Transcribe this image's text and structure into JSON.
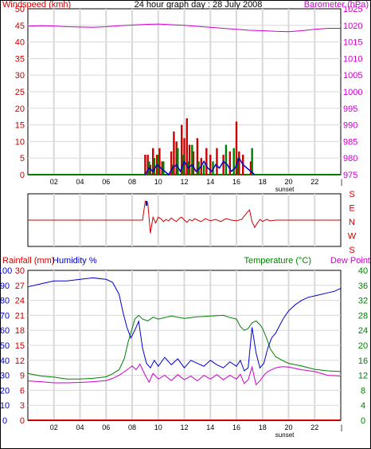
{
  "chart_data": [
    {
      "type": "bar",
      "title": "24 hour graph day : 28 July 2008",
      "left_axis_title": "Windspeed (kmh)",
      "right_axis_title": "Barometer (hPa)",
      "left_axis_ticks": [
        "0",
        "5",
        "10",
        "15",
        "20",
        "25",
        "30",
        "35",
        "40",
        "45",
        "50"
      ],
      "right_axis_ticks": [
        "975",
        "980",
        "985",
        "990",
        "995",
        "1000",
        "1005",
        "1010",
        "1015",
        "1020",
        "1025"
      ],
      "ylim_left": [
        0,
        50
      ],
      "ylim_right": [
        975,
        1025
      ],
      "x_ticks": [
        "02",
        "04",
        "06",
        "08",
        "10",
        "12",
        "14",
        "16",
        "18",
        "20",
        "22"
      ],
      "x_range_hours": [
        0,
        24
      ],
      "sunset_label": "sunset",
      "sunset_hour": 19.7,
      "grid": true,
      "colors": {
        "gust": "#cc0000",
        "avg": "#008000",
        "wind_line": "#0000cc",
        "baseline": "#008000",
        "barometer": "#cc00cc",
        "left_axis": "#cc0000",
        "right_axis": "#cc00cc"
      },
      "barometer": {
        "x": [
          0,
          1,
          2,
          3,
          4,
          5,
          6,
          7,
          8,
          9,
          10,
          11,
          12,
          13,
          14,
          15,
          16,
          17,
          18,
          19,
          20,
          21,
          22,
          23,
          24
        ],
        "y": [
          1019.8,
          1019.9,
          1019.8,
          1019.6,
          1019.5,
          1019.4,
          1019.6,
          1019.9,
          1020.1,
          1020.3,
          1020.4,
          1020.2,
          1020.0,
          1019.7,
          1019.4,
          1019.1,
          1018.8,
          1018.5,
          1018.4,
          1018.2,
          1018.1,
          1018.4,
          1018.8,
          1019.1,
          1019.1
        ]
      },
      "gust": {
        "x": [
          9.0,
          9.2,
          9.4,
          9.6,
          9.9,
          10.1,
          10.3,
          11.0,
          11.2,
          11.4,
          11.8,
          12.0,
          12.2,
          12.4,
          12.7,
          13.0,
          13.3,
          13.7,
          14.0,
          14.5,
          15.0,
          15.5,
          16.0,
          16.2,
          16.5,
          17.1
        ],
        "y": [
          6,
          6,
          3,
          8,
          6,
          8,
          4,
          7,
          13,
          10,
          15,
          11,
          17,
          9,
          7,
          11,
          5,
          8,
          6,
          8,
          6,
          7,
          16,
          7,
          6,
          4
        ]
      },
      "avg": {
        "x": [
          9.3,
          9.7,
          10.0,
          10.4,
          11.1,
          11.5,
          11.9,
          12.3,
          12.6,
          13.1,
          13.5,
          14.2,
          15.2,
          15.8,
          16.1,
          17.2
        ],
        "y": [
          4,
          5,
          6,
          4,
          3,
          8,
          6,
          4,
          9,
          4,
          3,
          4,
          9,
          8,
          5,
          8
        ]
      },
      "wind_line": {
        "x": [
          9.0,
          9.3,
          9.6,
          9.9,
          10.2,
          10.5,
          10.8,
          11.1,
          11.4,
          11.7,
          12.0,
          12.3,
          12.6,
          12.9,
          13.2,
          13.5,
          13.8,
          14.1,
          14.4,
          14.7,
          15.0,
          15.3,
          15.6,
          15.9,
          16.2,
          16.5,
          16.8,
          17.1,
          17.4
        ],
        "y": [
          0,
          2,
          1,
          3,
          2,
          1,
          0,
          2,
          3,
          1,
          4,
          2,
          3,
          1,
          2,
          4,
          2,
          1,
          3,
          2,
          4,
          3,
          1,
          2,
          5,
          3,
          2,
          1,
          0
        ]
      }
    },
    {
      "type": "line",
      "title": "",
      "direction_labels": [
        "S",
        "E",
        "N",
        "W",
        "S"
      ],
      "x_ticks": [],
      "grid": true,
      "colors": {
        "line": "#cc0000",
        "tick": "#0000cc"
      },
      "direction": {
        "x": [
          0,
          8.8,
          9.0,
          9.2,
          9.4,
          9.6,
          9.8,
          10.0,
          10.2,
          10.4,
          10.6,
          10.8,
          11.0,
          11.2,
          11.4,
          11.6,
          11.8,
          12.0,
          12.2,
          12.4,
          12.6,
          12.8,
          13.0,
          13.3,
          13.6,
          14.0,
          14.4,
          14.8,
          15.2,
          15.6,
          16.0,
          16.4,
          16.8,
          17.0,
          17.2,
          17.4,
          17.6,
          17.8,
          18.0,
          18.3,
          18.6,
          19.0,
          24
        ],
        "y": [
          180,
          180,
          310,
          300,
          90,
          200,
          160,
          200,
          190,
          170,
          185,
          175,
          195,
          180,
          170,
          190,
          200,
          180,
          165,
          185,
          175,
          190,
          180,
          170,
          190,
          175,
          185,
          170,
          190,
          180,
          175,
          185,
          230,
          250,
          170,
          130,
          160,
          185,
          170,
          185,
          175,
          180,
          180
        ]
      }
    },
    {
      "type": "line",
      "left_axis_titles": [
        "Rainfall (mm)",
        "Humidity %"
      ],
      "right_axis_titles": [
        "Temperature (°C)",
        "Dew Point"
      ],
      "humidity_ticks": [
        "0",
        "10",
        "20",
        "30",
        "40",
        "50",
        "60",
        "70",
        "80",
        "90",
        "100"
      ],
      "rainfall_ticks": [
        "0",
        "3",
        "6",
        "9",
        "12",
        "15",
        "18",
        "21",
        "24",
        "27",
        "30"
      ],
      "temperature_ticks": [
        "0",
        "4",
        "8",
        "12",
        "16",
        "20",
        "24",
        "28",
        "32",
        "36",
        "40"
      ],
      "x_ticks": [
        "02",
        "04",
        "06",
        "08",
        "10",
        "12",
        "14",
        "16",
        "18",
        "20",
        "22"
      ],
      "x_range_hours": [
        0,
        24
      ],
      "sunset_label": "sunset",
      "sunset_hour": 19.7,
      "grid": true,
      "colors": {
        "humidity": "#0000cc",
        "temperature": "#008000",
        "dew_point": "#cc00cc",
        "rainfall": "#cc0000",
        "left_axis": "#cc0000",
        "right_axis": "#008000"
      },
      "rainfall": {
        "x": [
          0,
          24
        ],
        "y": [
          0,
          0
        ]
      },
      "humidity": {
        "x": [
          0,
          1,
          2,
          3,
          4,
          5,
          6,
          6.5,
          7,
          7.3,
          7.6,
          7.9,
          8.2,
          8.5,
          8.8,
          9.1,
          9.4,
          9.7,
          10,
          10.5,
          11,
          11.5,
          12,
          12.5,
          13,
          13.5,
          14,
          14.5,
          15,
          15.5,
          16,
          16.3,
          16.6,
          16.9,
          17.2,
          17.5,
          17.8,
          18.1,
          18.4,
          18.7,
          19,
          19.3,
          19.6,
          20,
          20.5,
          21,
          21.5,
          22,
          22.5,
          23,
          23.5,
          24
        ],
        "y": [
          89,
          91,
          93,
          93,
          94,
          95,
          94,
          92,
          84,
          72,
          62,
          55,
          60,
          66,
          48,
          38,
          35,
          40,
          36,
          42,
          37,
          41,
          35,
          40,
          38,
          36,
          40,
          37,
          35,
          39,
          36,
          40,
          33,
          35,
          62,
          45,
          35,
          38,
          48,
          55,
          58,
          63,
          68,
          73,
          77,
          80,
          82,
          83,
          84,
          85,
          86,
          88
        ]
      },
      "temperature": {
        "x": [
          0,
          1,
          2,
          3,
          4,
          5,
          6,
          6.5,
          7,
          7.4,
          7.7,
          8.0,
          8.2,
          8.5,
          8.8,
          9.2,
          9.6,
          10,
          11,
          12,
          13,
          14,
          15,
          15.5,
          16,
          16.3,
          16.6,
          16.9,
          17.2,
          17.5,
          17.8,
          18.0,
          18.3,
          18.6,
          19,
          19.5,
          20,
          21,
          22,
          23,
          24
        ],
        "y": [
          12.5,
          11.8,
          11.5,
          11.0,
          11.0,
          11.2,
          11.6,
          12.4,
          13.5,
          16.5,
          21,
          24.5,
          27,
          28,
          27,
          26.5,
          27.5,
          27,
          27.8,
          27.2,
          27.6,
          27.8,
          28.0,
          27.4,
          27.0,
          25.0,
          24.0,
          24.5,
          26,
          26.5,
          25.5,
          24.5,
          22,
          19,
          17,
          16,
          15.2,
          14.5,
          13.6,
          13.2,
          13.0
        ]
      },
      "dew_point": {
        "x": [
          0,
          1,
          2,
          3,
          4,
          5,
          6,
          6.5,
          7,
          7.5,
          8,
          8.3,
          8.6,
          9.0,
          9.3,
          9.6,
          10,
          10.5,
          11,
          11.5,
          12,
          12.5,
          13,
          13.5,
          14,
          14.5,
          15,
          15.5,
          16,
          16.3,
          16.6,
          16.9,
          17.2,
          17.5,
          17.8,
          18.1,
          18.4,
          18.7,
          19,
          19.5,
          20,
          21,
          22,
          23,
          24
        ],
        "y": [
          10.5,
          10.3,
          10.0,
          10.0,
          10.1,
          10.3,
          10.6,
          11.2,
          12.0,
          13.2,
          14.5,
          13.5,
          15.0,
          12.0,
          10.2,
          12.5,
          11.0,
          12.0,
          10.6,
          12.2,
          10.8,
          11.8,
          10.5,
          12.0,
          11.0,
          12.2,
          10.8,
          12.0,
          11.0,
          12.3,
          9.8,
          10.8,
          14.2,
          9.5,
          10.5,
          12.0,
          13.0,
          13.5,
          14.0,
          14.3,
          14.2,
          13.5,
          13.0,
          12.0,
          11.8
        ]
      }
    }
  ]
}
